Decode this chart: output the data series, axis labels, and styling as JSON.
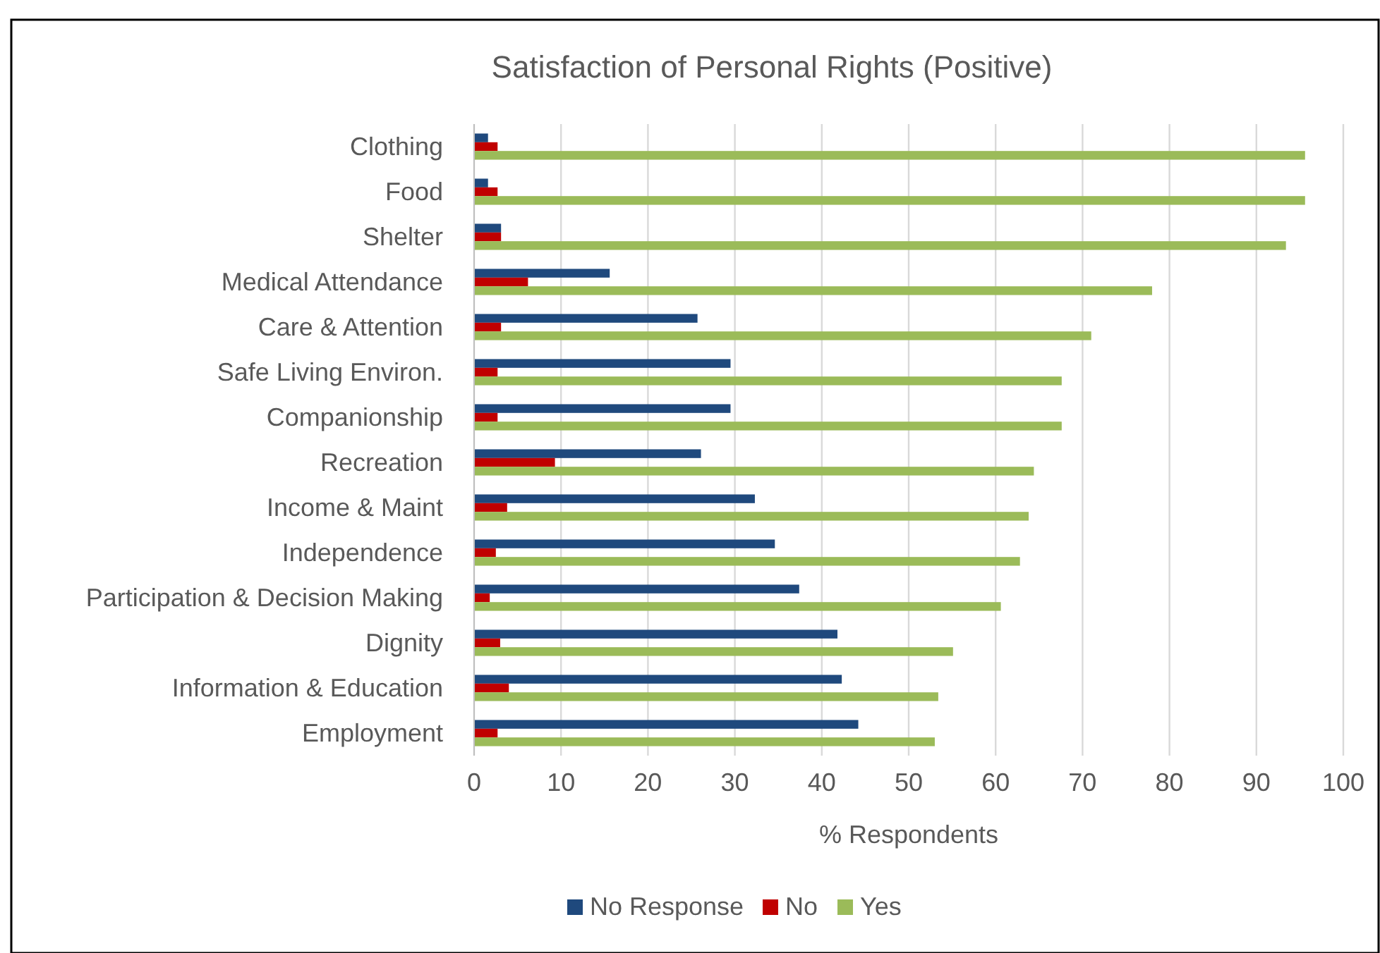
{
  "chart_data": {
    "type": "bar",
    "orientation": "horizontal",
    "title": "Satisfaction of Personal Rights (Positive)",
    "xlabel": "% Respondents",
    "categories": [
      "Clothing",
      "Food",
      "Shelter",
      "Medical Attendance",
      "Care & Attention",
      "Safe Living Environ.",
      "Companionship",
      "Recreation",
      "Income & Maint",
      "Independence",
      "Participation & Decision Making",
      "Dignity",
      "Information & Education",
      "Employment"
    ],
    "series": [
      {
        "name": "No Response",
        "color": "#1f497d",
        "values": [
          1.6,
          1.6,
          3.1,
          15.6,
          25.7,
          29.5,
          29.5,
          26.1,
          32.3,
          34.6,
          37.4,
          41.8,
          42.3,
          44.2
        ]
      },
      {
        "name": "No",
        "color": "#c00000",
        "values": [
          2.7,
          2.7,
          3.1,
          6.2,
          3.1,
          2.7,
          2.7,
          9.3,
          3.8,
          2.5,
          1.8,
          3.0,
          4.0,
          2.7
        ]
      },
      {
        "name": "Yes",
        "color": "#9bbb59",
        "values": [
          95.6,
          95.6,
          93.4,
          78.0,
          71.0,
          67.6,
          67.6,
          64.4,
          63.8,
          62.8,
          60.6,
          55.1,
          53.4,
          53.0
        ]
      }
    ],
    "xlim": [
      0,
      100
    ],
    "xticks": [
      0,
      10,
      20,
      30,
      40,
      50,
      60,
      70,
      80,
      90,
      100
    ],
    "grid": "x",
    "legend": "bottom"
  }
}
